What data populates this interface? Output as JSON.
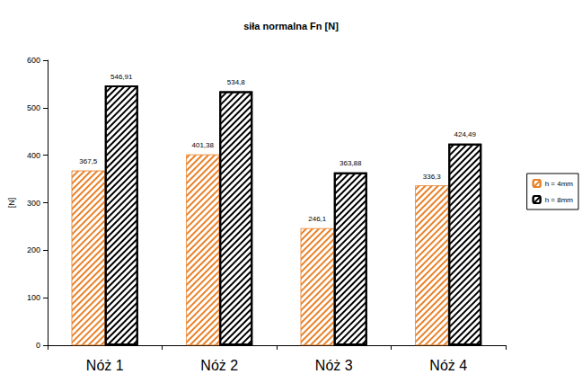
{
  "chart_data": {
    "type": "bar",
    "title": "siła normalna Fn [N]",
    "y_label": "[N]",
    "categories": [
      "Nóż 1",
      "Nóż 2",
      "Nóż 3",
      "Nóż 4"
    ],
    "series": [
      {
        "name": "h = 4mm",
        "color": "#e8822a",
        "values": [
          367.5,
          401.38,
          246.1,
          336.3
        ],
        "value_labels": [
          "367,5",
          "401,38",
          "246,1",
          "336,3"
        ]
      },
      {
        "name": "h = 8mm",
        "color": "#000000",
        "values": [
          546.91,
          534.8,
          363.88,
          424.49
        ],
        "value_labels": [
          "546,91",
          "534,8",
          "363,88",
          "424,49"
        ]
      }
    ],
    "ylim": [
      0,
      600
    ],
    "yticks": [
      0,
      100,
      200,
      300,
      400,
      500,
      600
    ],
    "grid": false,
    "legend": "right",
    "data_labels": true
  }
}
